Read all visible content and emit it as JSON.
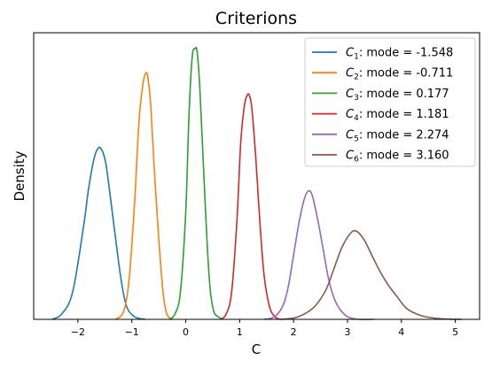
{
  "chart_data": {
    "type": "line",
    "title": "Criterions",
    "xlabel": "C",
    "ylabel": "Density",
    "xlim": [
      -2.82,
      5.45
    ],
    "ylim": [
      0,
      1.07
    ],
    "xticks": [
      -2,
      -1,
      0,
      1,
      2,
      3,
      4,
      5
    ],
    "xtick_labels": [
      "−2",
      "−1",
      "0",
      "1",
      "2",
      "3",
      "4",
      "5"
    ],
    "y_ticks_shown": false,
    "grid": false,
    "legend_position": "top-right",
    "series": [
      {
        "name": "C1",
        "sub": "1",
        "mode": -1.548,
        "mode_label": "-1.548",
        "color": "#1f77b4",
        "x": [
          -2.48,
          -2.3,
          -2.1,
          -1.9,
          -1.8,
          -1.7,
          -1.62,
          -1.55,
          -1.48,
          -1.4,
          -1.3,
          -1.2,
          -1.1,
          -0.95,
          -0.75
        ],
        "y": [
          0.0,
          0.02,
          0.1,
          0.34,
          0.49,
          0.6,
          0.64,
          0.63,
          0.58,
          0.46,
          0.3,
          0.15,
          0.05,
          0.01,
          0.0
        ]
      },
      {
        "name": "C2",
        "sub": "2",
        "mode": -0.711,
        "mode_label": "-0.711",
        "color": "#ff7f0e",
        "x": [
          -1.3,
          -1.15,
          -1.05,
          -0.95,
          -0.87,
          -0.8,
          -0.74,
          -0.7,
          -0.65,
          -0.58,
          -0.5,
          -0.42,
          -0.35,
          -0.25
        ],
        "y": [
          0.0,
          0.03,
          0.15,
          0.43,
          0.73,
          0.87,
          0.92,
          0.9,
          0.8,
          0.55,
          0.3,
          0.1,
          0.02,
          0.0
        ]
      },
      {
        "name": "C3",
        "sub": "3",
        "mode": 0.177,
        "mode_label": "0.177",
        "color": "#2ca02c",
        "x": [
          -0.3,
          -0.2,
          -0.1,
          0.0,
          0.06,
          0.12,
          0.17,
          0.21,
          0.26,
          0.32,
          0.39,
          0.45,
          0.52,
          0.6,
          0.68
        ],
        "y": [
          0.0,
          0.02,
          0.1,
          0.4,
          0.76,
          0.98,
          1.01,
          1.0,
          0.87,
          0.61,
          0.31,
          0.12,
          0.03,
          0.01,
          0.0
        ]
      },
      {
        "name": "C4",
        "sub": "4",
        "mode": 1.181,
        "mode_label": "1.181",
        "color": "#d62728",
        "x": [
          0.65,
          0.75,
          0.85,
          0.95,
          1.02,
          1.09,
          1.15,
          1.19,
          1.23,
          1.3,
          1.37,
          1.45,
          1.55,
          1.65,
          1.75
        ],
        "y": [
          0.0,
          0.02,
          0.1,
          0.37,
          0.66,
          0.8,
          0.84,
          0.83,
          0.78,
          0.6,
          0.38,
          0.17,
          0.05,
          0.01,
          0.0
        ]
      },
      {
        "name": "C5",
        "sub": "5",
        "mode": 2.274,
        "mode_label": "2.274",
        "color": "#9467bd",
        "x": [
          1.45,
          1.65,
          1.8,
          1.9,
          2.0,
          2.1,
          2.2,
          2.28,
          2.35,
          2.45,
          2.55,
          2.65,
          2.75,
          2.85,
          3.0,
          3.2,
          3.5
        ],
        "y": [
          0.0,
          0.01,
          0.05,
          0.12,
          0.24,
          0.36,
          0.45,
          0.48,
          0.46,
          0.37,
          0.26,
          0.15,
          0.08,
          0.04,
          0.01,
          0.0,
          0.0
        ]
      },
      {
        "name": "C6",
        "sub": "6",
        "mode": 3.16,
        "mode_label": "3.160",
        "color": "#8c564b",
        "x": [
          1.75,
          2.0,
          2.2,
          2.4,
          2.6,
          2.75,
          2.9,
          3.05,
          3.16,
          3.3,
          3.45,
          3.6,
          3.75,
          3.9,
          4.1,
          4.35,
          4.6,
          4.85,
          5.12
        ],
        "y": [
          0.0,
          0.005,
          0.02,
          0.05,
          0.11,
          0.19,
          0.27,
          0.32,
          0.33,
          0.3,
          0.24,
          0.18,
          0.13,
          0.09,
          0.04,
          0.015,
          0.005,
          0.001,
          0.0
        ]
      }
    ]
  }
}
